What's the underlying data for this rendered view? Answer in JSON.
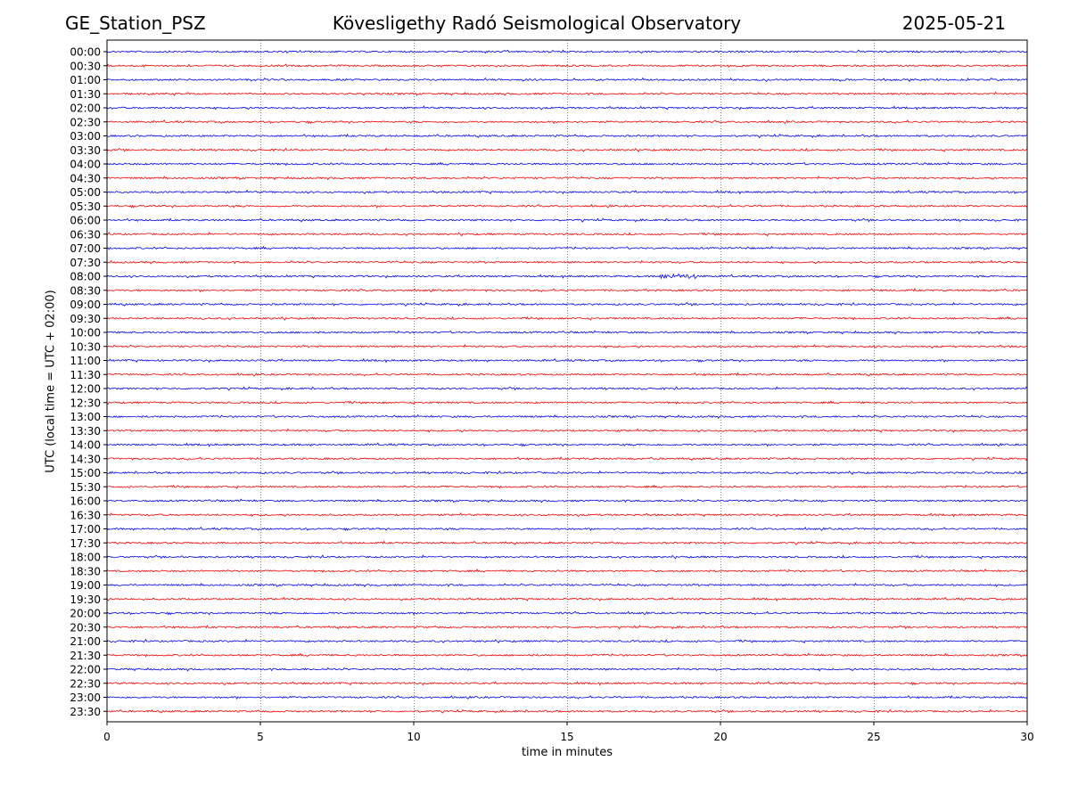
{
  "header": {
    "station": "GE_Station_PSZ",
    "observatory": "Kövesligethy Radó Seismological Observatory",
    "date": "2025-05-21"
  },
  "chart_data": {
    "type": "line",
    "title": "Kövesligethy Radó Seismological Observatory",
    "xlabel": "time in minutes",
    "ylabel": "UTC (local time = UTC + 02:00)",
    "xlim": [
      0,
      30
    ],
    "xticks": [
      "0",
      "5",
      "10",
      "15",
      "20",
      "25",
      "30"
    ],
    "grid": "vertical dotted at every 5 minutes",
    "colors": {
      "even_rows": "#0000ff",
      "odd_rows": "#ff0000"
    },
    "rows": [
      "00:00",
      "00:30",
      "01:00",
      "01:30",
      "02:00",
      "02:30",
      "03:00",
      "03:30",
      "04:00",
      "04:30",
      "05:00",
      "05:30",
      "06:00",
      "06:30",
      "07:00",
      "07:30",
      "08:00",
      "08:30",
      "09:00",
      "09:30",
      "10:00",
      "10:30",
      "11:00",
      "11:30",
      "12:00",
      "12:30",
      "13:00",
      "13:30",
      "14:00",
      "14:30",
      "15:00",
      "15:30",
      "16:00",
      "16:30",
      "17:00",
      "17:30",
      "18:00",
      "18:30",
      "19:00",
      "19:30",
      "20:00",
      "20:30",
      "21:00",
      "21:30",
      "22:00",
      "22:30",
      "23:00",
      "23:30"
    ],
    "events": [
      {
        "row": "08:00",
        "minute_start": 18.0,
        "minute_end": 19.2
      }
    ]
  }
}
